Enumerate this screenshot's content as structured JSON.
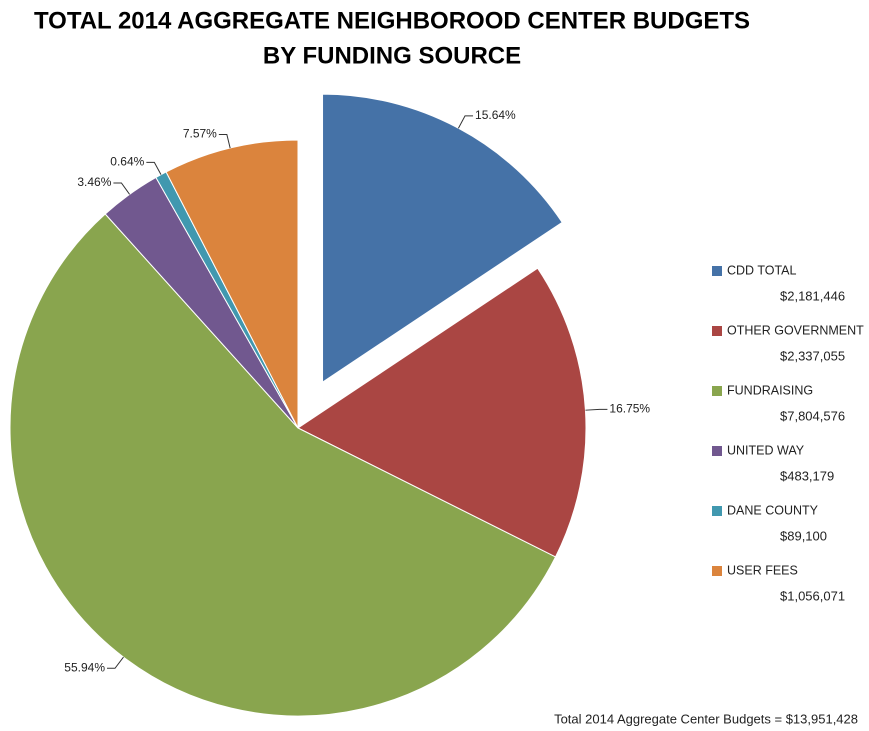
{
  "chart_data": {
    "type": "pie",
    "title_lines": [
      "TOTAL 2014 AGGREGATE NEIGHBOROOD CENTER BUDGETS",
      "BY FUNDING SOURCE"
    ],
    "categories": [
      "CDD TOTAL",
      "OTHER GOVERNMENT",
      "FUNDRAISING",
      "UNITED  WAY",
      "DANE COUNTY",
      "USER FEES"
    ],
    "values": [
      15.64,
      16.75,
      55.94,
      3.46,
      0.64,
      7.57
    ],
    "value_labels": [
      "15.64%",
      "16.75%",
      "55.94%",
      "3.46%",
      "0.64%",
      "7.57%"
    ],
    "legend_amounts": [
      "$2,181,446",
      "$2,337,055",
      "$7,804,576",
      "$483,179",
      "$89,100",
      "$1,056,071"
    ],
    "colors": [
      "#4572a7",
      "#aa4643",
      "#89a54e",
      "#71588f",
      "#4198af",
      "#db843d"
    ],
    "exploded": [
      0
    ],
    "note": "Total 2014  Aggregate Center Budgets = $13,951,428"
  }
}
